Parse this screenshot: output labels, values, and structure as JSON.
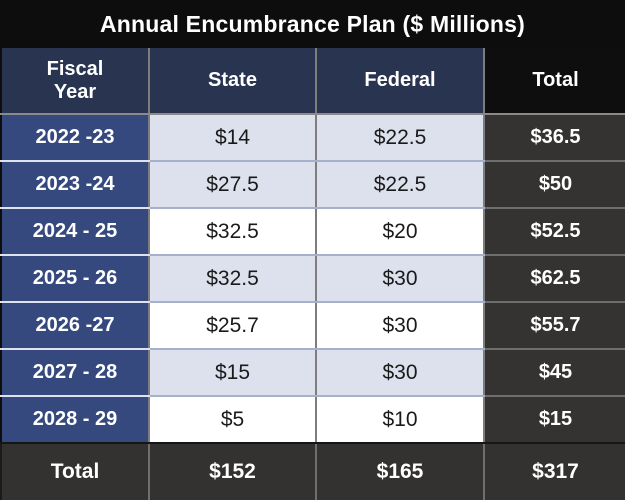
{
  "title": "Annual Encumbrance Plan ($ Millions)",
  "table": {
    "columns": {
      "fiscal_year": "Fiscal\nYear",
      "state": "State",
      "federal": "Federal",
      "total": "Total"
    },
    "rows": [
      {
        "fy": "2022 -23",
        "state": "$14",
        "federal": "$22.5",
        "total": "$36.5"
      },
      {
        "fy": "2023 -24",
        "state": "$27.5",
        "federal": "$22.5",
        "total": "$50"
      },
      {
        "fy": "2024 - 25",
        "state": "$32.5",
        "federal": "$20",
        "total": "$52.5"
      },
      {
        "fy": "2025 - 26",
        "state": "$32.5",
        "federal": "$30",
        "total": "$62.5"
      },
      {
        "fy": "2026 -27",
        "state": "$25.7",
        "federal": "$30",
        "total": "$55.7"
      },
      {
        "fy": "2027 - 28",
        "state": "$15",
        "federal": "$30",
        "total": "$45"
      },
      {
        "fy": "2028 - 29",
        "state": "$5",
        "federal": "$10",
        "total": "$15"
      }
    ],
    "total_row": {
      "label": "Total",
      "state": "$152",
      "federal": "$165",
      "total": "$317"
    }
  },
  "colors": {
    "background_black": "#0d0d0d",
    "header_navy": "#293550",
    "fiscal_year_blue": "#35497e",
    "row_light": "#dce1ed",
    "row_white": "#ffffff",
    "total_dark": "#343331"
  }
}
